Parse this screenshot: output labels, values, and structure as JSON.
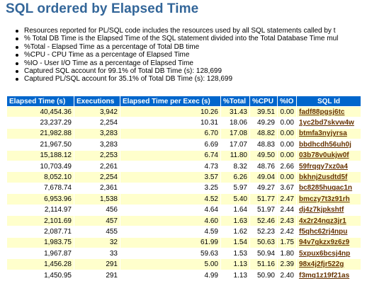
{
  "title": "SQL ordered by Elapsed Time",
  "notes": [
    "Resources reported for PL/SQL code includes the resources used by all SQL statements called by t",
    "% Total DB Time is the Elapsed Time of the SQL statement divided into the Total Database Time mul",
    "%Total - Elapsed Time as a percentage of Total DB time",
    "%CPU - CPU Time as a percentage of Elapsed Time",
    "%IO - User I/O Time as a percentage of Elapsed Time",
    "Captured SQL account for 99.1% of Total DB Time (s): 128,699",
    "Captured PL/SQL account for 35.1% of Total DB Time (s): 128,699"
  ],
  "table": {
    "headers": [
      "Elapsed Time (s)",
      "Executions",
      "Elapsed Time per Exec (s)",
      "%Total",
      "%CPU",
      "%IO",
      "SQL Id"
    ],
    "rows": [
      [
        "40,454.36",
        "3,942",
        "10.26",
        "31.43",
        "39.51",
        "0.00",
        "fadf88pgsj6tc"
      ],
      [
        "23,237.29",
        "2,254",
        "10.31",
        "18.06",
        "49.29",
        "0.00",
        "1yc2bd7skvw4w"
      ],
      [
        "21,982.88",
        "3,283",
        "6.70",
        "17.08",
        "48.82",
        "0.00",
        "btmfa3nyjyrsa"
      ],
      [
        "21,967.50",
        "3,283",
        "6.69",
        "17.07",
        "48.83",
        "0.00",
        "bbdhcdh56uh0j"
      ],
      [
        "15,188.12",
        "2,253",
        "6.74",
        "11.80",
        "49.50",
        "0.00",
        "03b78v0ukjw0f"
      ],
      [
        "10,703.49",
        "2,261",
        "4.73",
        "8.32",
        "48.76",
        "2.66",
        "59frqqy7xz0a4"
      ],
      [
        "8,052.10",
        "2,254",
        "3.57",
        "6.26",
        "49.04",
        "0.00",
        "bkhnj2usdtd5f"
      ],
      [
        "7,678.74",
        "2,361",
        "3.25",
        "5.97",
        "49.27",
        "3.67",
        "bc8285hugac1n"
      ],
      [
        "6,953.96",
        "1,538",
        "4.52",
        "5.40",
        "51.77",
        "2.47",
        "bmczy7t3z91rh"
      ],
      [
        "2,114.97",
        "456",
        "4.64",
        "1.64",
        "51.97",
        "2.44",
        "dj4z7kjpkshtf"
      ],
      [
        "2,101.69",
        "457",
        "4.60",
        "1.63",
        "52.46",
        "2.43",
        "4x2r24nqz3jr1"
      ],
      [
        "2,087.71",
        "455",
        "4.59",
        "1.62",
        "52.23",
        "2.42",
        "f5qhc62rj4npu"
      ],
      [
        "1,983.75",
        "32",
        "61.99",
        "1.54",
        "50.63",
        "1.75",
        "94v7gkzx9z6z9"
      ],
      [
        "1,967.87",
        "33",
        "59.63",
        "1.53",
        "50.94",
        "1.80",
        "5xpux6bcsj4np"
      ],
      [
        "1,456.28",
        "291",
        "5.00",
        "1.13",
        "51.16",
        "2.39",
        "98x4j2fjr522g"
      ],
      [
        "1,450.95",
        "291",
        "4.99",
        "1.13",
        "50.90",
        "2.40",
        "f3mq1z19f21as"
      ]
    ]
  }
}
